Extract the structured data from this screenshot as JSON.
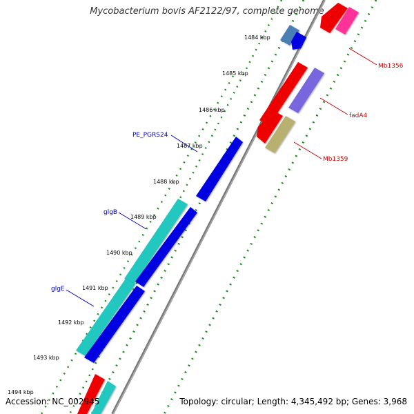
{
  "title": "Mycobacterium bovis AF2122/97, complete genome",
  "footer": {
    "accession": "Accession: NC_002945",
    "summary": "Topology: circular; Length: 4,345,492 bp; Genes: 3,968"
  },
  "scale": {
    "unit": "kbp",
    "ticks": [
      "1484 kbp",
      "1485 kbp",
      "1486 kbp",
      "1487 kbp",
      "1488 kbp",
      "1489 kbp",
      "1490 kbp",
      "1491 kbp",
      "1492 kbp",
      "1493 kbp",
      "1494 kbp"
    ]
  },
  "labels": {
    "left": [
      "PE_PGRS24",
      "glgB",
      "glgE"
    ],
    "right": [
      "Mb1356",
      "fadA4",
      "Mb1359"
    ]
  },
  "colors": {
    "backbone": "#777777",
    "dots": "#1a8a1a",
    "red": "#ee0000",
    "pink": "#ff3399",
    "blue": "#0000e0",
    "steelblue": "#4a7fb5",
    "purple": "#7766dd",
    "khaki": "#b8b070",
    "cyan": "#20c8c0",
    "left_label": "#0000cc",
    "right_label": "#cc0000"
  }
}
